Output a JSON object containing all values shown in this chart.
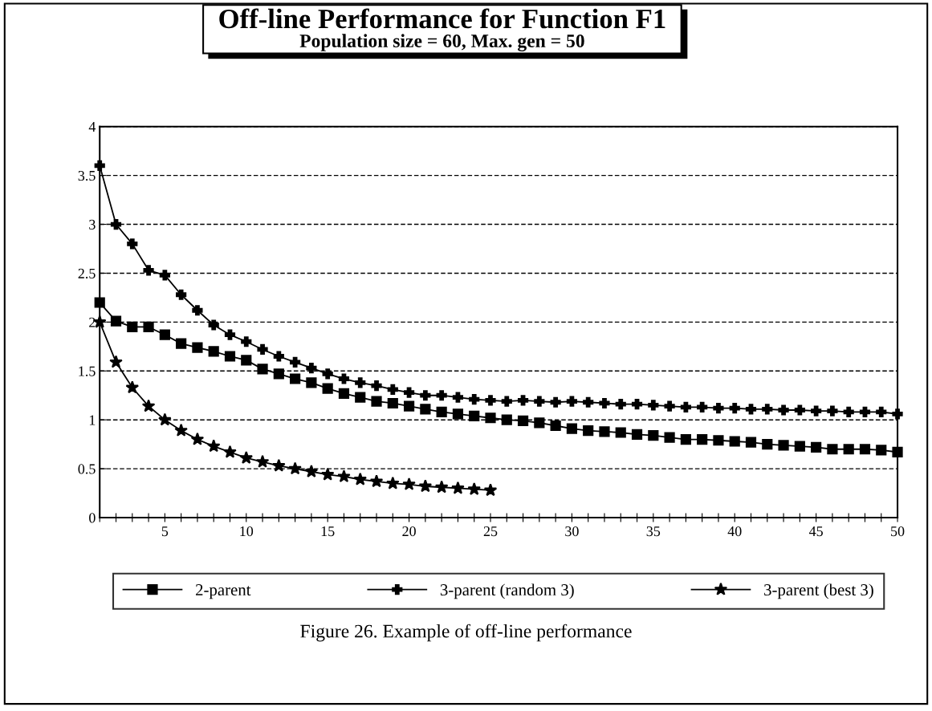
{
  "chart_data": {
    "type": "line",
    "title": "Off-line Performance for Function F1",
    "subtitle": "Population size = 60, Max. gen = 50",
    "x": [
      1,
      2,
      3,
      4,
      5,
      6,
      7,
      8,
      9,
      10,
      11,
      12,
      13,
      14,
      15,
      16,
      17,
      18,
      19,
      20,
      21,
      22,
      23,
      24,
      25,
      26,
      27,
      28,
      29,
      30,
      31,
      32,
      33,
      34,
      35,
      36,
      37,
      38,
      39,
      40,
      41,
      42,
      43,
      44,
      45,
      46,
      47,
      48,
      49,
      50
    ],
    "series": [
      {
        "name": "2-parent",
        "color": "#000000",
        "marker": "square",
        "values": [
          2.2,
          2.01,
          1.95,
          1.95,
          1.87,
          1.78,
          1.74,
          1.7,
          1.65,
          1.61,
          1.52,
          1.47,
          1.42,
          1.38,
          1.32,
          1.27,
          1.23,
          1.19,
          1.17,
          1.14,
          1.11,
          1.08,
          1.06,
          1.04,
          1.02,
          1.0,
          0.99,
          0.97,
          0.94,
          0.91,
          0.89,
          0.88,
          0.87,
          0.85,
          0.84,
          0.82,
          0.8,
          0.8,
          0.79,
          0.78,
          0.77,
          0.75,
          0.74,
          0.73,
          0.72,
          0.7,
          0.7,
          0.7,
          0.69,
          0.67
        ]
      },
      {
        "name": "3-parent (random 3)",
        "color": "#000000",
        "marker": "cross",
        "values": [
          3.6,
          3.0,
          2.8,
          2.53,
          2.48,
          2.28,
          2.12,
          1.97,
          1.87,
          1.8,
          1.72,
          1.65,
          1.59,
          1.53,
          1.47,
          1.42,
          1.38,
          1.35,
          1.31,
          1.28,
          1.25,
          1.25,
          1.23,
          1.21,
          1.2,
          1.19,
          1.2,
          1.19,
          1.18,
          1.19,
          1.18,
          1.17,
          1.16,
          1.16,
          1.15,
          1.14,
          1.13,
          1.13,
          1.12,
          1.12,
          1.11,
          1.11,
          1.1,
          1.1,
          1.09,
          1.09,
          1.08,
          1.08,
          1.08,
          1.06
        ]
      },
      {
        "name": "3-parent (best 3)",
        "color": "#000000",
        "marker": "star",
        "values": [
          2.0,
          1.59,
          1.33,
          1.14,
          1.0,
          0.89,
          0.8,
          0.73,
          0.67,
          0.61,
          0.57,
          0.53,
          0.5,
          0.47,
          0.44,
          0.42,
          0.39,
          0.37,
          0.35,
          0.34,
          0.32,
          0.31,
          0.3,
          0.29,
          0.28,
          null,
          null,
          null,
          null,
          null,
          null,
          null,
          null,
          null,
          null,
          null,
          null,
          null,
          null,
          null,
          null,
          null,
          null,
          null,
          null,
          null,
          null,
          null,
          null,
          null
        ]
      }
    ],
    "xlim": [
      1,
      50
    ],
    "xticks": [
      {
        "value": 1,
        "label": null
      },
      {
        "value": 2,
        "label": null
      },
      {
        "value": 3,
        "label": null
      },
      {
        "value": 4,
        "label": null
      },
      5,
      {
        "value": 6,
        "label": null
      },
      {
        "value": 7,
        "label": null
      },
      {
        "value": 8,
        "label": null
      },
      {
        "value": 9,
        "label": null
      },
      10,
      {
        "value": 11,
        "label": null
      },
      {
        "value": 12,
        "label": null
      },
      {
        "value": 13,
        "label": null
      },
      {
        "value": 14,
        "label": null
      },
      15,
      {
        "value": 16,
        "label": null
      },
      {
        "value": 17,
        "label": null
      },
      {
        "value": 18,
        "label": null
      },
      {
        "value": 19,
        "label": null
      },
      20,
      {
        "value": 21,
        "label": null
      },
      {
        "value": 22,
        "label": null
      },
      {
        "value": 23,
        "label": null
      },
      {
        "value": 24,
        "label": null
      },
      25,
      {
        "value": 26,
        "label": null
      },
      {
        "value": 27,
        "label": null
      },
      {
        "value": 28,
        "label": null
      },
      {
        "value": 29,
        "label": null
      },
      30,
      {
        "value": 31,
        "label": null
      },
      {
        "value": 32,
        "label": null
      },
      {
        "value": 33,
        "label": null
      },
      {
        "value": 34,
        "label": null
      },
      35,
      {
        "value": 36,
        "label": null
      },
      {
        "value": 37,
        "label": null
      },
      {
        "value": 38,
        "label": null
      },
      {
        "value": 39,
        "label": null
      },
      40,
      {
        "value": 41,
        "label": null
      },
      {
        "value": 42,
        "label": null
      },
      {
        "value": 43,
        "label": null
      },
      {
        "value": 44,
        "label": null
      },
      45,
      {
        "value": 46,
        "label": null
      },
      {
        "value": 47,
        "label": null
      },
      {
        "value": 48,
        "label": null
      },
      {
        "value": 49,
        "label": null
      },
      50
    ],
    "ylim": [
      0,
      4
    ],
    "yticks": [
      0,
      0.5,
      1,
      1.5,
      2,
      2.5,
      3,
      3.5,
      4
    ],
    "grid": "y",
    "line_style": "solid",
    "legend": "bottom",
    "annotations": [
      "Figure 26. Example of off-line performance"
    ]
  }
}
